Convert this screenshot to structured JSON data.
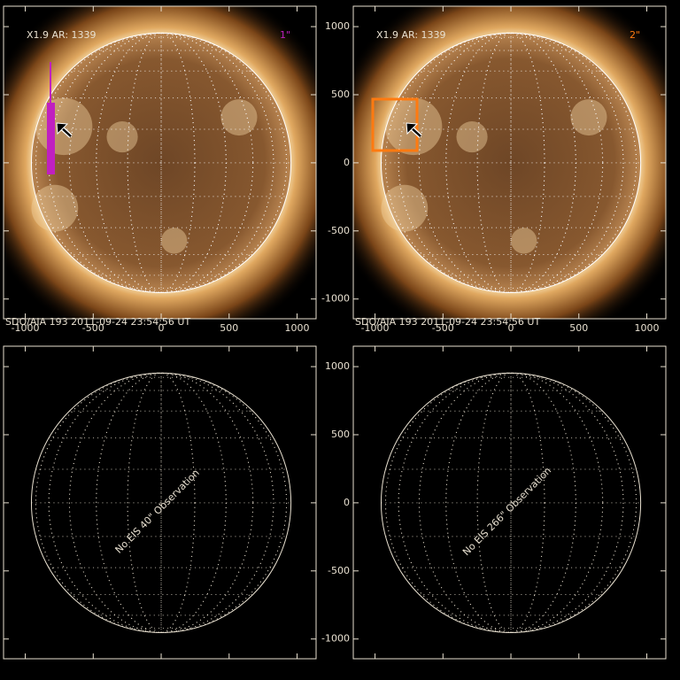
{
  "axes": {
    "xlim": [
      -1160,
      1140
    ],
    "ylim": [
      -1145,
      1150
    ],
    "xticks": [
      -1000,
      -500,
      0,
      500,
      1000
    ],
    "yticks": [
      -1000,
      -500,
      0,
      500,
      1000
    ],
    "disk_radius": 955
  },
  "panels": [
    {
      "label": "X1.9 AR: 1339",
      "slit": "1\"",
      "slit_color": "#c020c0",
      "footer": "SDO/AIA 193  2011-09-24 23:54:56 UT",
      "show_x_labels": true,
      "show_y_labels": false
    },
    {
      "label": "X1.9 AR: 1339",
      "slit": "2\"",
      "slit_color": "#ff7a10",
      "footer": "SDO/AIA 193  2011-09-24 23:54:56 UT",
      "show_x_labels": true,
      "show_y_labels": true
    },
    {
      "message": "No EIS 40\" Observation",
      "show_x_labels": false,
      "show_y_labels": false
    },
    {
      "message": "No EIS 266\" Observation",
      "show_x_labels": false,
      "show_y_labels": true
    }
  ]
}
